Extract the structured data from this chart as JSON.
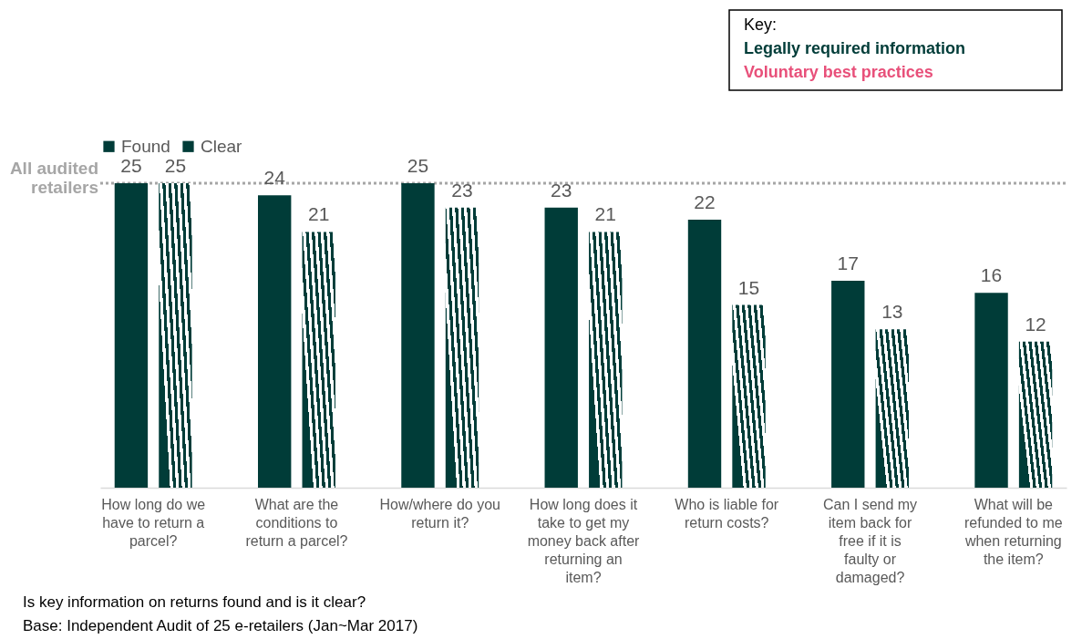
{
  "chart_data": {
    "type": "bar",
    "categories": [
      "How long do we have to return a parcel?",
      "What are the conditions to return a parcel?",
      "How/where do you return it?",
      "How long does it take to get my money back after returning an item?",
      "Who is liable for return costs?",
      "Can I send my item back for free if it is faulty or damaged?",
      "What will be refunded to me when returning the item?"
    ],
    "series": [
      {
        "name": "Found",
        "color": "#003c38",
        "values": [
          25,
          24,
          25,
          23,
          22,
          17,
          16
        ]
      },
      {
        "name": "Clear",
        "color": "#003c38",
        "values": [
          25,
          21,
          23,
          21,
          15,
          13,
          12
        ]
      }
    ],
    "tick_labels": "x",
    "data_labels": true,
    "legend": "top",
    "grid": false,
    "ref_lines": [
      {
        "axis": "y",
        "value": 25,
        "label": "All audited retailers",
        "color": "#a6a6a6",
        "line_style": "dotted"
      }
    ],
    "annotations": [
      "Key:",
      "Legally required information",
      "Voluntary best practices",
      "Is key information on returns found and is it clear?",
      "Base: Independent Audit of 25 e-retailers (Jan~Mar 2017)"
    ]
  }
}
